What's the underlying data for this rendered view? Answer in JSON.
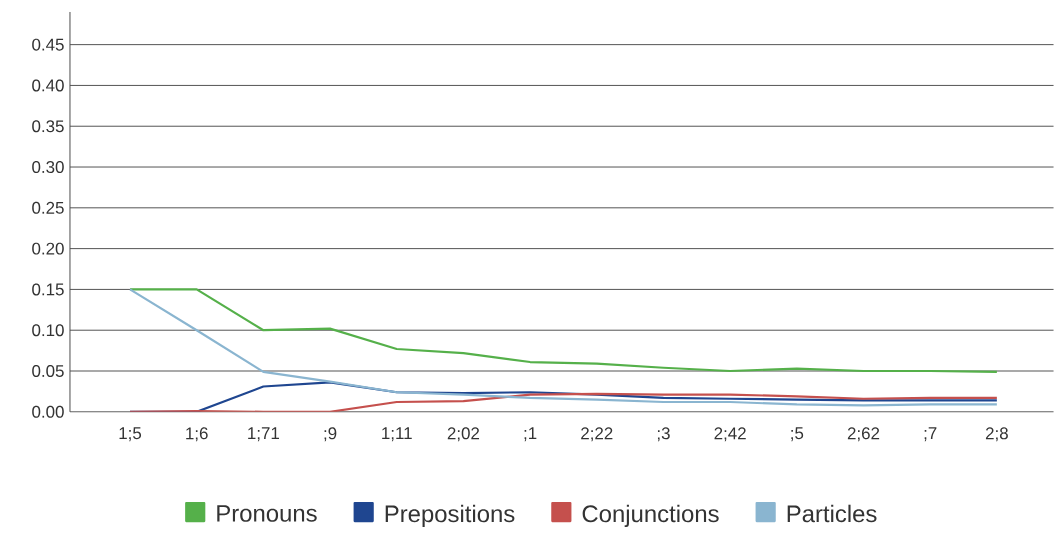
{
  "chart_data": {
    "type": "line",
    "categories": [
      "1;5",
      "1;6",
      "1;71",
      ";9",
      "1;11",
      "2;02",
      ";1",
      "2;22",
      ";3",
      "2;42",
      ";5",
      "2;62",
      ";7",
      "2;8"
    ],
    "series": [
      {
        "name": "Pronouns",
        "color": "#55b04a",
        "values": [
          0.15,
          0.15,
          0.1,
          0.102,
          0.077,
          0.072,
          0.061,
          0.059,
          0.054,
          0.05,
          0.053,
          0.05,
          0.05,
          0.049
        ]
      },
      {
        "name": "Prepositions",
        "color": "#1f4690",
        "values": [
          0,
          0,
          0.031,
          0.036,
          0.024,
          0.023,
          0.024,
          0.021,
          0.017,
          0.016,
          0.015,
          0.014,
          0.014,
          0.014
        ]
      },
      {
        "name": "Conjunctions",
        "color": "#c5504d",
        "values": [
          0,
          0.001,
          0,
          0,
          0.012,
          0.013,
          0.021,
          0.022,
          0.021,
          0.021,
          0.019,
          0.016,
          0.017,
          0.017
        ]
      },
      {
        "name": "Particles",
        "color": "#8ab5d0",
        "values": [
          0.15,
          0.1,
          0.049,
          0.037,
          0.024,
          0.021,
          0.017,
          0.015,
          0.012,
          0.012,
          0.009,
          0.008,
          0.009,
          0.009
        ]
      }
    ],
    "ylim": [
      0,
      0.49
    ],
    "yticks": [
      {
        "value": 0,
        "label": "0.00"
      },
      {
        "value": 0.05,
        "label": "0.05"
      },
      {
        "value": 0.1,
        "label": "0.10"
      },
      {
        "value": 0.15,
        "label": "0.15"
      },
      {
        "value": 0.2,
        "label": "0.20"
      },
      {
        "value": 0.25,
        "label": "0.25"
      },
      {
        "value": 0.3,
        "label": "0.30"
      },
      {
        "value": 0.35,
        "label": "0.35"
      },
      {
        "value": 0.4,
        "label": "0.40"
      },
      {
        "value": 0.45,
        "label": "0.45"
      }
    ],
    "grid": "y",
    "legend": "bottom"
  }
}
